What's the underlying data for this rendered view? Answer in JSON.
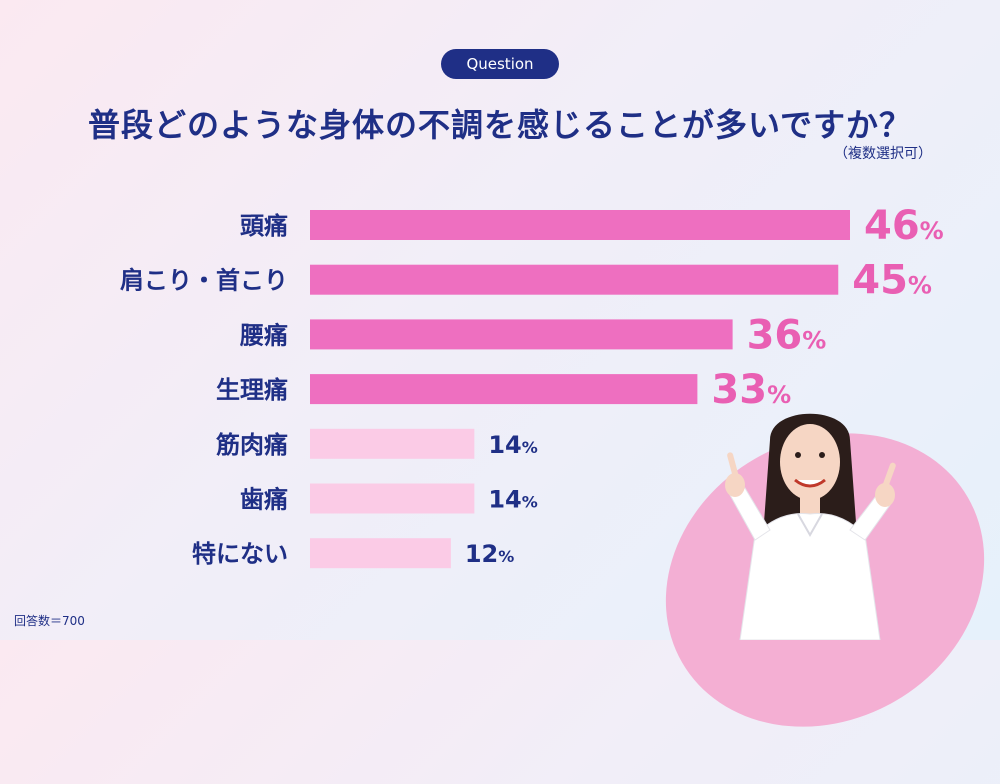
{
  "header": {
    "badge": "Question",
    "title": "普段どのような身体の不調を感じることが多いですか？",
    "note": "（複数選択可）"
  },
  "footnote": "回答数＝700",
  "colors": {
    "highlight_bar": "#ee6fc0",
    "normal_bar": "#fbcbe6",
    "highlight_label": "#e95fb3",
    "normal_label": "#1f2f86",
    "category_text": "#1f2f86"
  },
  "chart_data": {
    "type": "bar",
    "orientation": "horizontal",
    "categories": [
      "頭痛",
      "肩こり・首こり",
      "腰痛",
      "生理痛",
      "筋肉痛",
      "歯痛",
      "特にない"
    ],
    "values": [
      46,
      45,
      36,
      33,
      14,
      14,
      12
    ],
    "value_labels": [
      "46",
      "45",
      "36",
      "33",
      "14",
      "14",
      "12"
    ],
    "unit": "%",
    "highlighted": [
      true,
      true,
      true,
      true,
      false,
      false,
      false
    ],
    "xlim": [
      0,
      46
    ],
    "grid": false,
    "legend": "none"
  }
}
